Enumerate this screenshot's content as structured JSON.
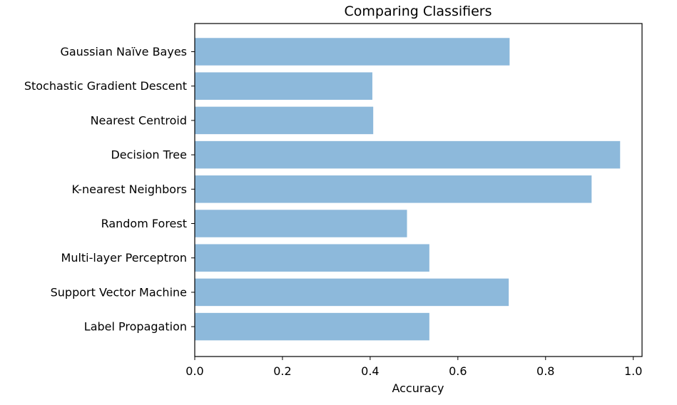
{
  "chart_data": {
    "type": "bar",
    "orientation": "horizontal",
    "title": "Comparing Classifiers",
    "xlabel": "Accuracy",
    "ylabel": "",
    "categories": [
      "Gaussian Naïve Bayes",
      "Stochastic Gradient Descent",
      "Nearest Centroid",
      "Decision Tree",
      "K-nearest Neighbors",
      "Random Forest",
      "Multi-layer Perceptron",
      "Support Vector Machine",
      "Label Propagation"
    ],
    "values": [
      0.718,
      0.405,
      0.407,
      0.97,
      0.905,
      0.484,
      0.535,
      0.716,
      0.535
    ],
    "xlim": [
      0.0,
      1.02
    ],
    "xticks": [
      0.0,
      0.2,
      0.4,
      0.6,
      0.8,
      1.0
    ],
    "xtick_labels": [
      "0.0",
      "0.2",
      "0.4",
      "0.6",
      "0.8",
      "1.0"
    ],
    "bar_color": "#8db9db",
    "grid": false,
    "legend": "none"
  }
}
